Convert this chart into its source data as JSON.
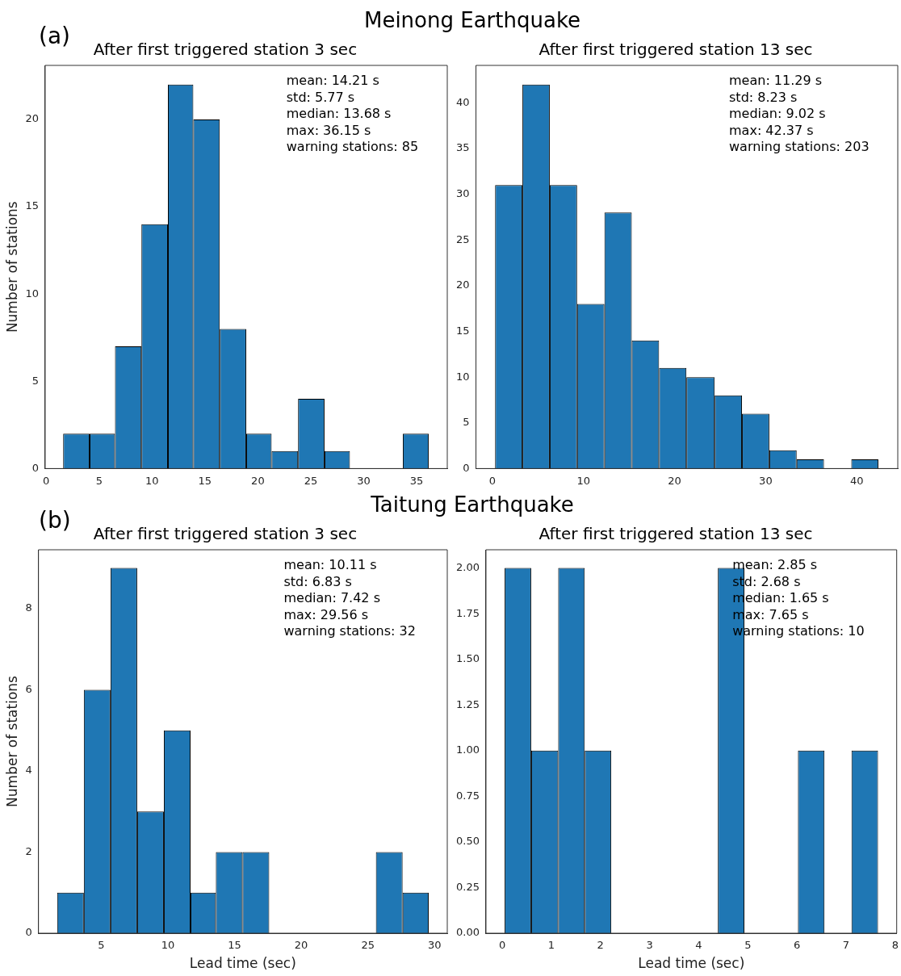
{
  "chart_data": [
    {
      "type": "histogram",
      "title": "After first triggered station 3 sec",
      "ylabel": "Number of stations",
      "color": "#1f77b4",
      "bins": [
        1.6,
        4.1,
        6.5,
        9.0,
        11.5,
        13.9,
        16.4,
        18.9,
        21.3,
        23.8,
        26.3,
        28.7,
        33.7,
        36.15
      ],
      "values": [
        2,
        2,
        7,
        14,
        22,
        20,
        8,
        2,
        1,
        4,
        1,
        0,
        2
      ],
      "xlim": [
        -0.1,
        37.9
      ],
      "xticks": [
        0,
        5,
        10,
        15,
        20,
        25,
        30,
        35
      ],
      "ylim": [
        0,
        23.1
      ],
      "yticks": [
        0,
        5,
        10,
        15,
        20
      ],
      "annotations": [
        "(a)",
        "Meinong Earthquake",
        "mean: 14.21 s",
        "std: 5.77 s",
        "median: 13.68 s",
        "max: 36.15 s",
        "warning stations: 85"
      ]
    },
    {
      "type": "histogram",
      "title": "After first triggered station 13 sec",
      "color": "#1f77b4",
      "bins": [
        0.3,
        3.3,
        6.3,
        9.3,
        12.3,
        15.3,
        18.3,
        21.3,
        24.4,
        27.4,
        30.4,
        33.4,
        36.4,
        39.4,
        42.37
      ],
      "values": [
        31,
        42,
        31,
        18,
        28,
        14,
        11,
        10,
        8,
        6,
        2,
        1,
        0,
        1
      ],
      "xlim": [
        -1.8,
        44.5
      ],
      "xticks": [
        0,
        10,
        20,
        30,
        40
      ],
      "ylim": [
        0,
        44.1
      ],
      "yticks": [
        0,
        5,
        10,
        15,
        20,
        25,
        30,
        35,
        40
      ],
      "annotations": [
        "mean: 11.29 s",
        "std: 8.23 s",
        "median: 9.02 s",
        "max: 42.37 s",
        "warning stations: 203"
      ]
    },
    {
      "type": "histogram",
      "title": "After first triggered station 3 sec",
      "ylabel": "Number of stations",
      "xlabel": "Lead time (sec)",
      "color": "#1f77b4",
      "bins": [
        1.7,
        3.7,
        5.7,
        7.7,
        9.7,
        11.7,
        13.6,
        15.6,
        17.6,
        25.6,
        27.6,
        29.56
      ],
      "values": [
        1,
        6,
        9,
        3,
        5,
        1,
        2,
        2,
        0,
        2,
        1
      ],
      "xlim": [
        0.3,
        30.95
      ],
      "xticks": [
        5,
        10,
        15,
        20,
        25,
        30
      ],
      "ylim": [
        0,
        9.45
      ],
      "yticks": [
        0,
        2,
        4,
        6,
        8
      ],
      "annotations": [
        "(b)",
        "Taitung Earthquake",
        "mean: 10.11 s",
        "std: 6.83 s",
        "median: 7.42 s",
        "max: 29.56 s",
        "warning stations: 32"
      ]
    },
    {
      "type": "histogram",
      "title": "After first triggered station 13 sec",
      "xlabel": "Lead time (sec)",
      "color": "#1f77b4",
      "bins": [
        0.05,
        0.59,
        1.14,
        1.68,
        2.22,
        4.39,
        4.93,
        6.02,
        6.56,
        7.11,
        7.65
      ],
      "values": [
        2,
        1,
        2,
        1,
        0,
        2,
        0,
        1,
        0,
        1
      ],
      "xlim": [
        -0.33,
        8.03
      ],
      "xticks": [
        0,
        1,
        2,
        3,
        4,
        5,
        6,
        7,
        8
      ],
      "ylim": [
        0,
        2.1
      ],
      "yticks": [
        {
          "value": 0,
          "label": "0.00"
        },
        {
          "value": 0.25,
          "label": "0.25"
        },
        {
          "value": 0.5,
          "label": "0.50"
        },
        {
          "value": 0.75,
          "label": "0.75"
        },
        {
          "value": 1,
          "label": "1.00"
        },
        {
          "value": 1.25,
          "label": "1.25"
        },
        {
          "value": 1.5,
          "label": "1.50"
        },
        {
          "value": 1.75,
          "label": "1.75"
        },
        {
          "value": 2,
          "label": "2.00"
        }
      ],
      "annotations": [
        "mean: 2.85 s",
        "std: 2.68 s",
        "median: 1.65 s",
        "max: 7.65 s",
        "warning stations: 10"
      ]
    }
  ]
}
